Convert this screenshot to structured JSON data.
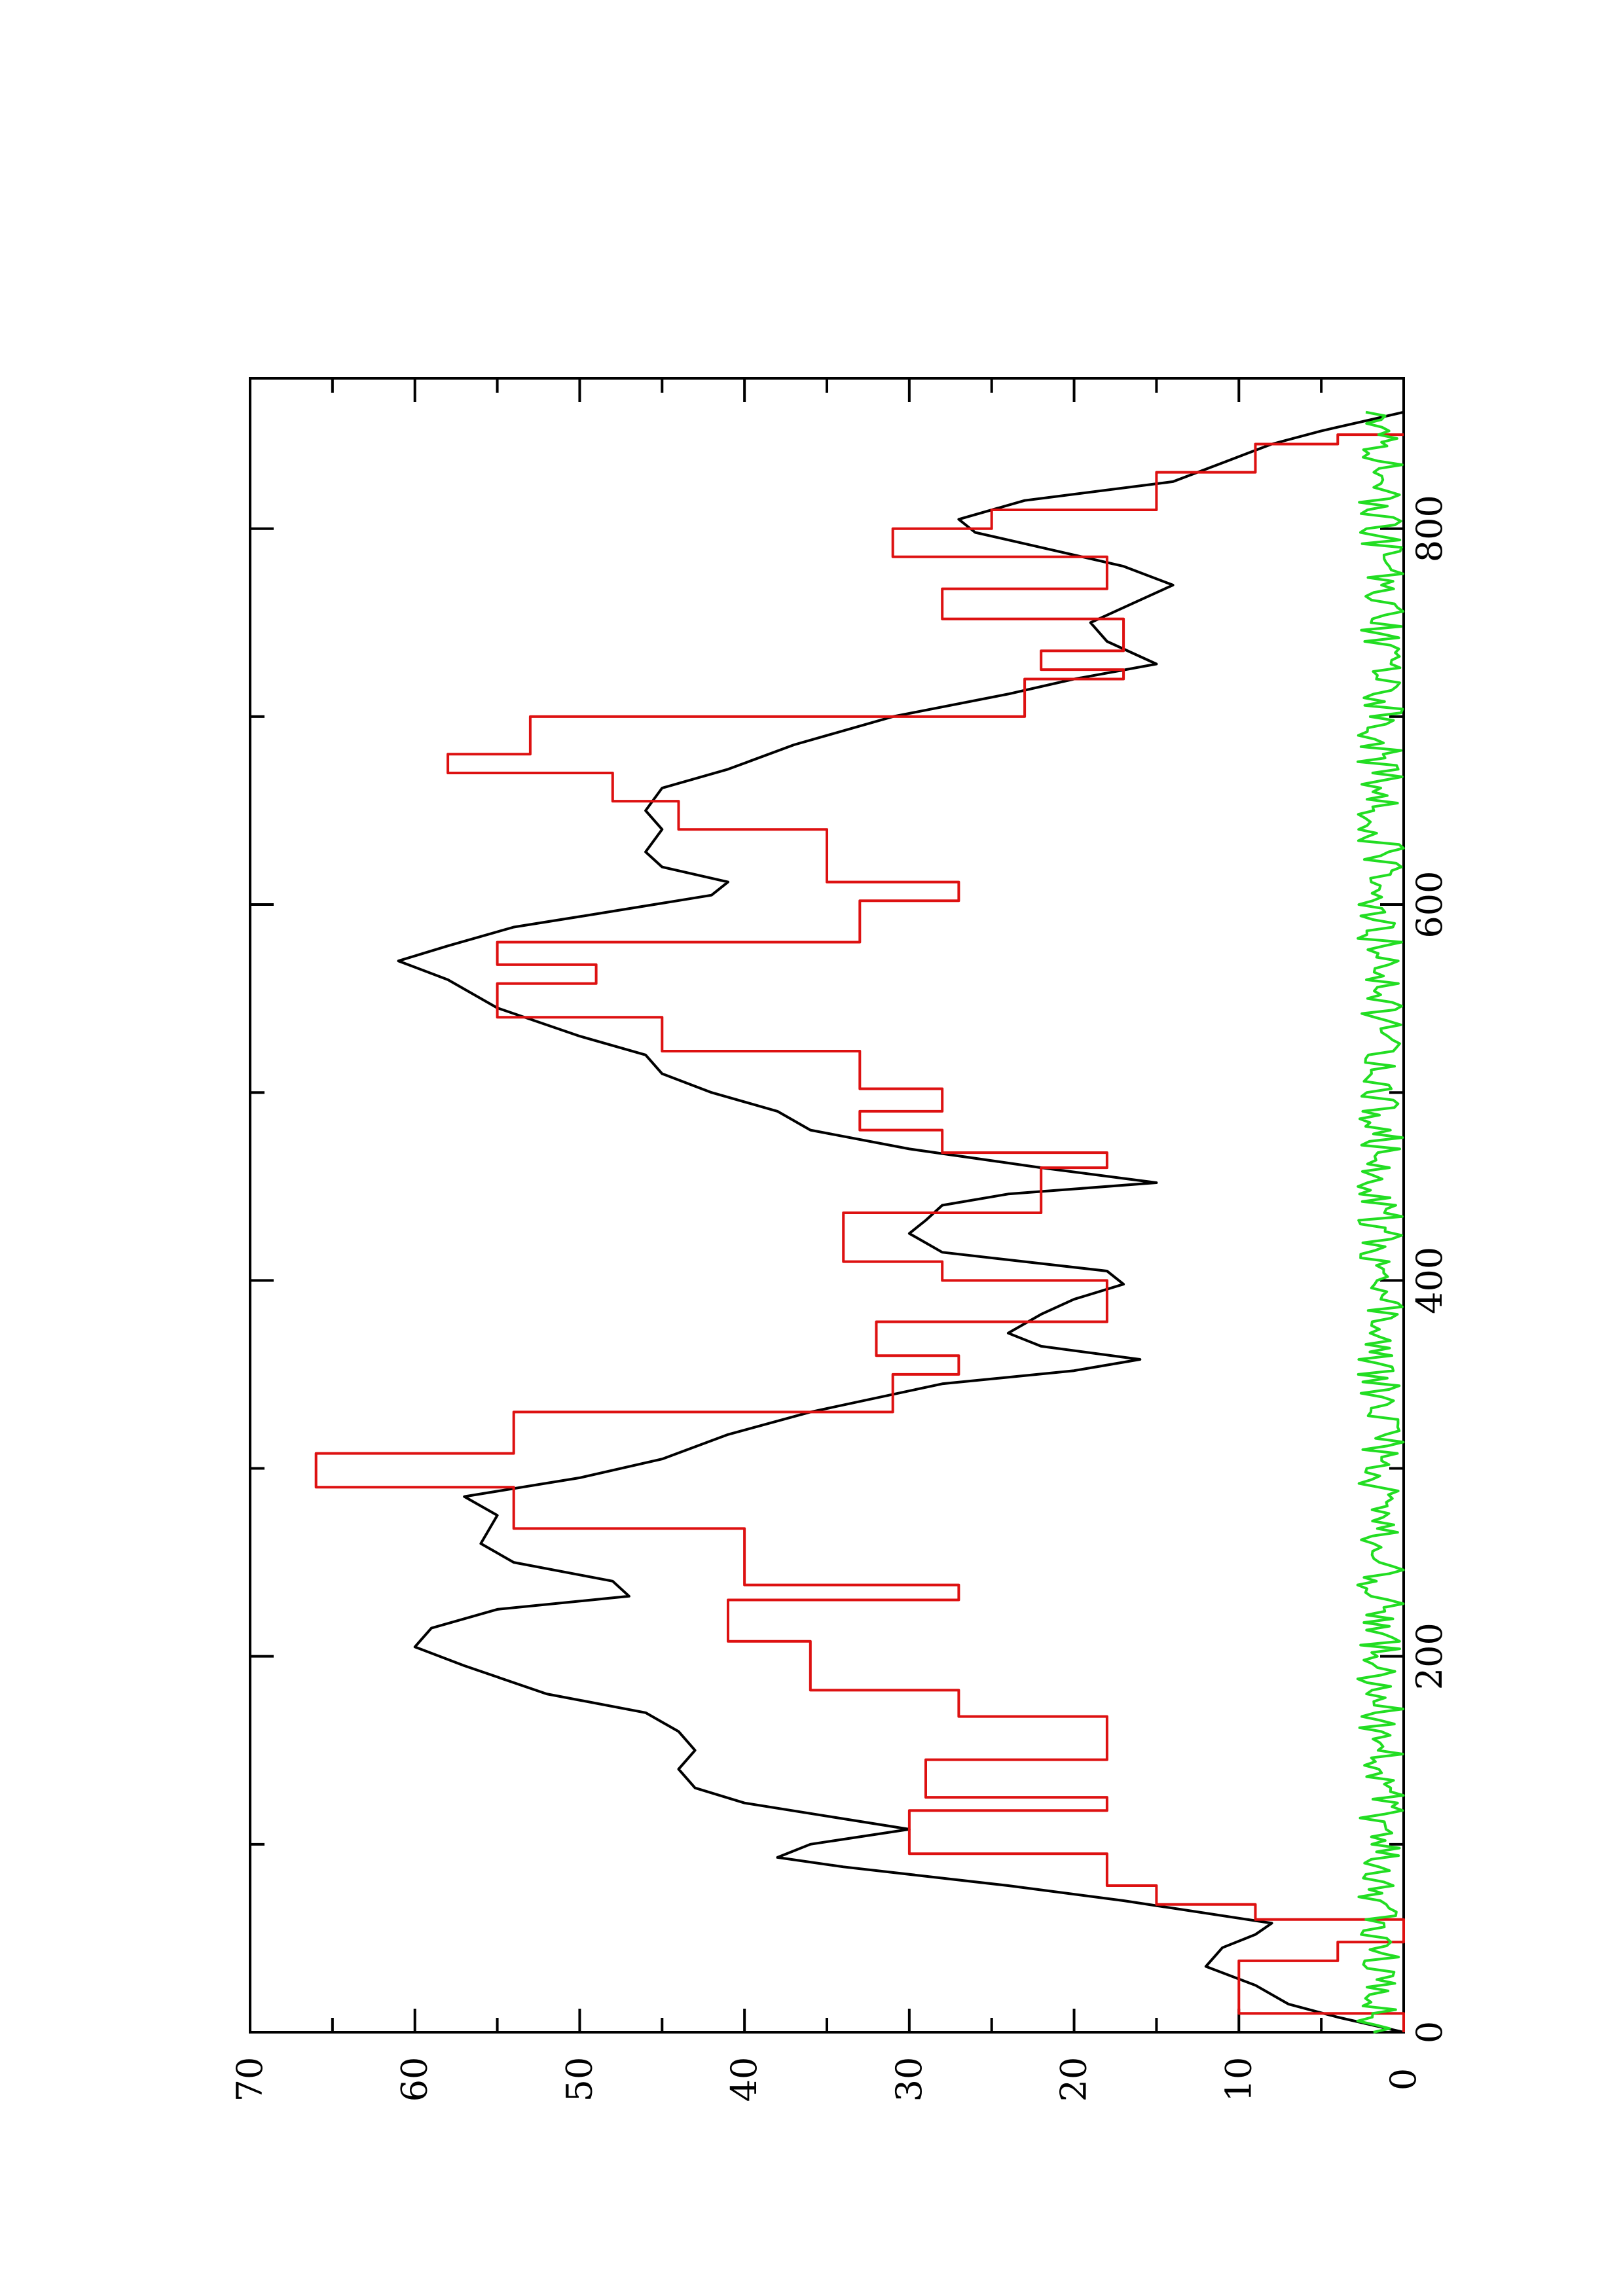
{
  "chart_data": {
    "type": "line",
    "rotated": "90deg-counterclockwise",
    "title": "",
    "xlabel": "",
    "ylabel": "",
    "xlim": [
      0,
      880
    ],
    "ylim": [
      0,
      70
    ],
    "x_ticks": [
      "0",
      "200",
      "400",
      "600",
      "800"
    ],
    "y_ticks": [
      "0",
      "10",
      "20",
      "30",
      "40",
      "50",
      "60",
      "70"
    ],
    "grid": false,
    "legend": "none",
    "series": [
      {
        "color": "#000000",
        "style": "smooth-line",
        "points": [
          [
            0,
            0
          ],
          [
            8,
            4
          ],
          [
            15,
            7
          ],
          [
            25,
            9
          ],
          [
            35,
            12
          ],
          [
            45,
            11
          ],
          [
            52,
            9
          ],
          [
            58,
            8
          ],
          [
            70,
            17
          ],
          [
            78,
            24
          ],
          [
            88,
            34
          ],
          [
            93,
            38
          ],
          [
            100,
            36
          ],
          [
            108,
            30
          ],
          [
            115,
            35
          ],
          [
            122,
            40
          ],
          [
            130,
            43
          ],
          [
            140,
            44
          ],
          [
            150,
            43
          ],
          [
            160,
            44
          ],
          [
            170,
            46
          ],
          [
            180,
            52
          ],
          [
            195,
            57
          ],
          [
            205,
            60
          ],
          [
            215,
            59
          ],
          [
            225,
            55
          ],
          [
            232,
            47
          ],
          [
            240,
            48
          ],
          [
            250,
            54
          ],
          [
            260,
            56
          ],
          [
            275,
            55
          ],
          [
            285,
            57
          ],
          [
            295,
            50
          ],
          [
            305,
            45
          ],
          [
            318,
            41
          ],
          [
            330,
            36
          ],
          [
            345,
            28
          ],
          [
            352,
            20
          ],
          [
            358,
            16
          ],
          [
            365,
            22
          ],
          [
            372,
            24
          ],
          [
            382,
            22
          ],
          [
            390,
            20
          ],
          [
            398,
            17
          ],
          [
            405,
            18
          ],
          [
            415,
            28
          ],
          [
            425,
            30
          ],
          [
            432,
            29
          ],
          [
            440,
            28
          ],
          [
            446,
            24
          ],
          [
            452,
            15
          ],
          [
            460,
            22
          ],
          [
            470,
            30
          ],
          [
            480,
            36
          ],
          [
            490,
            38
          ],
          [
            500,
            42
          ],
          [
            510,
            45
          ],
          [
            520,
            46
          ],
          [
            530,
            50
          ],
          [
            545,
            55
          ],
          [
            560,
            58
          ],
          [
            570,
            61
          ],
          [
            578,
            58
          ],
          [
            588,
            54
          ],
          [
            595,
            49
          ],
          [
            605,
            42
          ],
          [
            612,
            41
          ],
          [
            620,
            45
          ],
          [
            628,
            46
          ],
          [
            640,
            45
          ],
          [
            650,
            46
          ],
          [
            662,
            45
          ],
          [
            672,
            41
          ],
          [
            685,
            37
          ],
          [
            700,
            31
          ],
          [
            712,
            24
          ],
          [
            720,
            20
          ],
          [
            728,
            15
          ],
          [
            740,
            18
          ],
          [
            750,
            19
          ],
          [
            762,
            16
          ],
          [
            770,
            14
          ],
          [
            780,
            17
          ],
          [
            790,
            22
          ],
          [
            798,
            26
          ],
          [
            805,
            27
          ],
          [
            815,
            23
          ],
          [
            825,
            14
          ],
          [
            835,
            11
          ],
          [
            845,
            8
          ],
          [
            852,
            5
          ],
          [
            858,
            2
          ],
          [
            862,
            0
          ]
        ]
      },
      {
        "color": "#dd1111",
        "style": "step-line",
        "steps": [
          [
            0,
            0
          ],
          [
            10,
            10
          ],
          [
            38,
            4
          ],
          [
            48,
            0
          ],
          [
            60,
            9
          ],
          [
            68,
            15
          ],
          [
            78,
            18
          ],
          [
            95,
            30
          ],
          [
            118,
            18
          ],
          [
            125,
            29
          ],
          [
            145,
            18
          ],
          [
            168,
            27
          ],
          [
            182,
            36
          ],
          [
            208,
            41
          ],
          [
            230,
            27
          ],
          [
            238,
            40
          ],
          [
            268,
            54
          ],
          [
            290,
            66
          ],
          [
            308,
            54
          ],
          [
            330,
            31
          ],
          [
            350,
            27
          ],
          [
            360,
            32
          ],
          [
            378,
            18
          ],
          [
            400,
            28
          ],
          [
            410,
            34
          ],
          [
            436,
            22
          ],
          [
            460,
            18
          ],
          [
            468,
            28
          ],
          [
            480,
            33
          ],
          [
            490,
            28
          ],
          [
            502,
            33
          ],
          [
            522,
            45
          ],
          [
            540,
            55
          ],
          [
            558,
            49
          ],
          [
            568,
            55
          ],
          [
            580,
            33
          ],
          [
            602,
            27
          ],
          [
            612,
            35
          ],
          [
            640,
            44
          ],
          [
            655,
            48
          ],
          [
            670,
            58
          ],
          [
            680,
            53
          ],
          [
            700,
            23
          ],
          [
            720,
            17
          ],
          [
            725,
            22
          ],
          [
            735,
            17
          ],
          [
            752,
            28
          ],
          [
            768,
            18
          ],
          [
            785,
            31
          ],
          [
            800,
            25
          ],
          [
            810,
            15
          ],
          [
            830,
            9
          ],
          [
            845,
            4
          ],
          [
            850,
            0
          ]
        ]
      },
      {
        "color": "#22dd22",
        "style": "noise-line",
        "base": 1.4,
        "amplitude": 1.4
      }
    ]
  }
}
